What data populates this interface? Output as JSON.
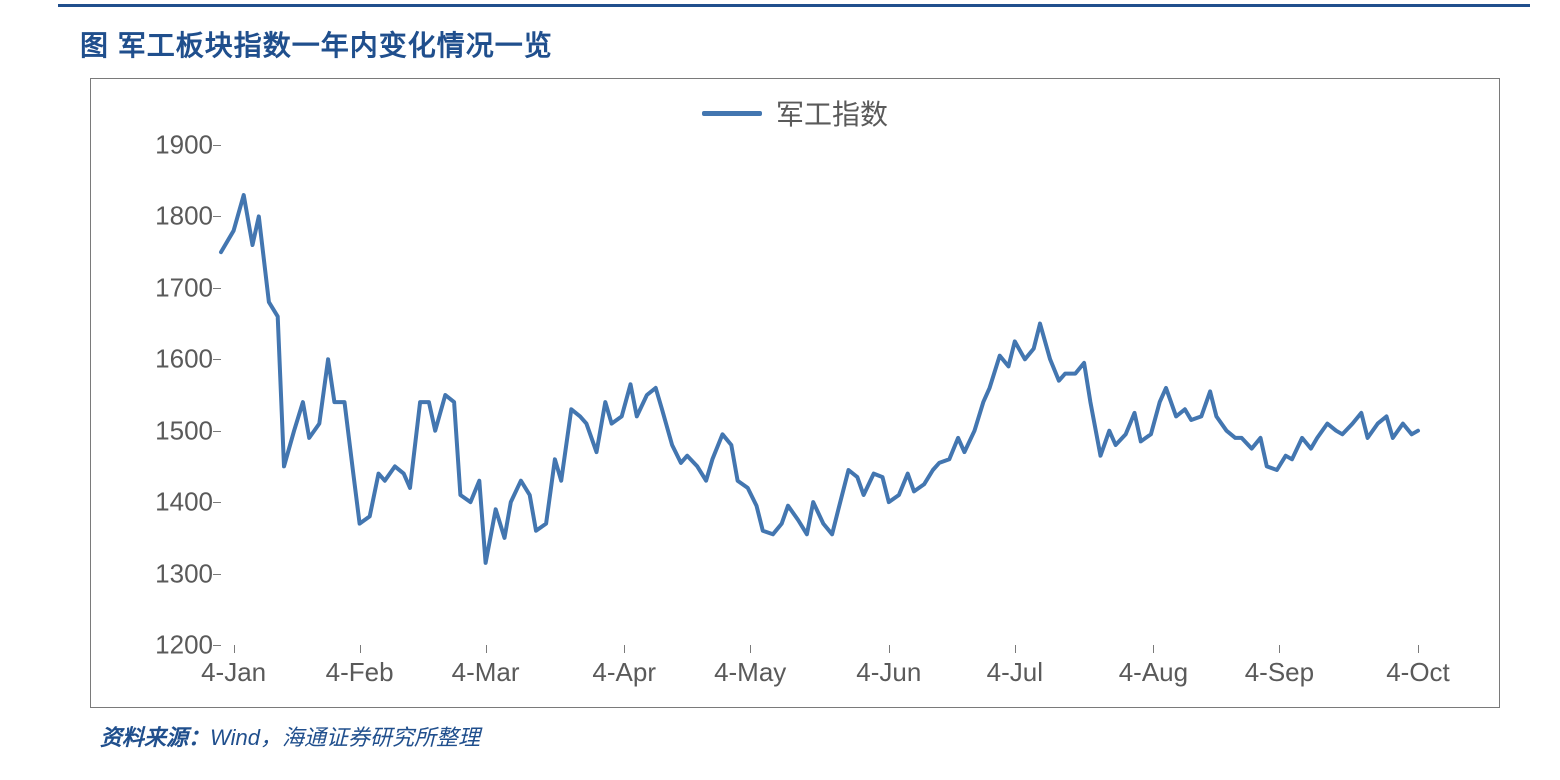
{
  "title": "图 军工板块指数一年内变化情况一览",
  "source_label": "资料来源：",
  "source_text": "Wind，海通证券研究所整理",
  "colors": {
    "accent_dark": "#204f8d",
    "line": "#4376b0",
    "axis": "#7a7a7a",
    "tick_text": "#5a5a5a",
    "background": "#ffffff"
  },
  "chart": {
    "type": "line",
    "legend_label": "军工指数",
    "legend_line_color": "#4376b0",
    "y_axis": {
      "min": 1200,
      "max": 1900,
      "ticks": [
        1200,
        1300,
        1400,
        1500,
        1600,
        1700,
        1800,
        1900
      ],
      "fontsize": 26
    },
    "x_axis": {
      "tick_labels": [
        "4-Jan",
        "4-Feb",
        "4-Mar",
        "4-Apr",
        "4-May",
        "4-Jun",
        "4-Jul",
        "4-Aug",
        "4-Sep",
        "4-Oct"
      ],
      "tick_positions_pct": [
        1,
        11,
        21,
        32,
        42,
        53,
        63,
        74,
        84,
        95
      ],
      "fontsize": 26
    },
    "line_width": 4,
    "line_color": "#4376b0",
    "series": [
      [
        0.0,
        1750
      ],
      [
        0.01,
        1780
      ],
      [
        0.018,
        1830
      ],
      [
        0.025,
        1760
      ],
      [
        0.03,
        1800
      ],
      [
        0.038,
        1680
      ],
      [
        0.045,
        1660
      ],
      [
        0.05,
        1450
      ],
      [
        0.058,
        1500
      ],
      [
        0.065,
        1540
      ],
      [
        0.07,
        1490
      ],
      [
        0.078,
        1510
      ],
      [
        0.085,
        1600
      ],
      [
        0.09,
        1540
      ],
      [
        0.098,
        1540
      ],
      [
        0.105,
        1440
      ],
      [
        0.11,
        1370
      ],
      [
        0.118,
        1380
      ],
      [
        0.125,
        1440
      ],
      [
        0.13,
        1430
      ],
      [
        0.138,
        1450
      ],
      [
        0.145,
        1440
      ],
      [
        0.15,
        1420
      ],
      [
        0.158,
        1540
      ],
      [
        0.165,
        1540
      ],
      [
        0.17,
        1500
      ],
      [
        0.178,
        1550
      ],
      [
        0.185,
        1540
      ],
      [
        0.19,
        1410
      ],
      [
        0.198,
        1400
      ],
      [
        0.205,
        1430
      ],
      [
        0.21,
        1315
      ],
      [
        0.218,
        1390
      ],
      [
        0.225,
        1350
      ],
      [
        0.23,
        1400
      ],
      [
        0.238,
        1430
      ],
      [
        0.245,
        1410
      ],
      [
        0.25,
        1360
      ],
      [
        0.258,
        1370
      ],
      [
        0.265,
        1460
      ],
      [
        0.27,
        1430
      ],
      [
        0.278,
        1530
      ],
      [
        0.285,
        1520
      ],
      [
        0.29,
        1510
      ],
      [
        0.298,
        1470
      ],
      [
        0.305,
        1540
      ],
      [
        0.31,
        1510
      ],
      [
        0.318,
        1520
      ],
      [
        0.325,
        1565
      ],
      [
        0.33,
        1520
      ],
      [
        0.338,
        1550
      ],
      [
        0.345,
        1560
      ],
      [
        0.35,
        1530
      ],
      [
        0.358,
        1480
      ],
      [
        0.365,
        1455
      ],
      [
        0.37,
        1465
      ],
      [
        0.378,
        1450
      ],
      [
        0.385,
        1430
      ],
      [
        0.39,
        1460
      ],
      [
        0.398,
        1495
      ],
      [
        0.405,
        1480
      ],
      [
        0.41,
        1430
      ],
      [
        0.418,
        1420
      ],
      [
        0.425,
        1395
      ],
      [
        0.43,
        1360
      ],
      [
        0.438,
        1355
      ],
      [
        0.445,
        1370
      ],
      [
        0.45,
        1395
      ],
      [
        0.458,
        1375
      ],
      [
        0.465,
        1355
      ],
      [
        0.47,
        1400
      ],
      [
        0.478,
        1370
      ],
      [
        0.485,
        1355
      ],
      [
        0.49,
        1390
      ],
      [
        0.498,
        1445
      ],
      [
        0.505,
        1435
      ],
      [
        0.51,
        1410
      ],
      [
        0.518,
        1440
      ],
      [
        0.525,
        1435
      ],
      [
        0.53,
        1400
      ],
      [
        0.538,
        1410
      ],
      [
        0.545,
        1440
      ],
      [
        0.55,
        1415
      ],
      [
        0.558,
        1425
      ],
      [
        0.565,
        1445
      ],
      [
        0.57,
        1455
      ],
      [
        0.578,
        1460
      ],
      [
        0.585,
        1490
      ],
      [
        0.59,
        1470
      ],
      [
        0.598,
        1500
      ],
      [
        0.605,
        1540
      ],
      [
        0.61,
        1560
      ],
      [
        0.618,
        1605
      ],
      [
        0.625,
        1590
      ],
      [
        0.63,
        1625
      ],
      [
        0.638,
        1600
      ],
      [
        0.645,
        1615
      ],
      [
        0.65,
        1650
      ],
      [
        0.658,
        1600
      ],
      [
        0.665,
        1570
      ],
      [
        0.67,
        1580
      ],
      [
        0.678,
        1580
      ],
      [
        0.685,
        1595
      ],
      [
        0.69,
        1540
      ],
      [
        0.698,
        1465
      ],
      [
        0.705,
        1500
      ],
      [
        0.71,
        1480
      ],
      [
        0.718,
        1495
      ],
      [
        0.725,
        1525
      ],
      [
        0.73,
        1485
      ],
      [
        0.738,
        1495
      ],
      [
        0.745,
        1540
      ],
      [
        0.75,
        1560
      ],
      [
        0.758,
        1520
      ],
      [
        0.765,
        1530
      ],
      [
        0.77,
        1515
      ],
      [
        0.778,
        1520
      ],
      [
        0.785,
        1555
      ],
      [
        0.79,
        1520
      ],
      [
        0.798,
        1500
      ],
      [
        0.805,
        1490
      ],
      [
        0.81,
        1490
      ],
      [
        0.818,
        1475
      ],
      [
        0.825,
        1490
      ],
      [
        0.83,
        1450
      ],
      [
        0.838,
        1445
      ],
      [
        0.845,
        1465
      ],
      [
        0.85,
        1460
      ],
      [
        0.858,
        1490
      ],
      [
        0.865,
        1475
      ],
      [
        0.87,
        1490
      ],
      [
        0.878,
        1510
      ],
      [
        0.885,
        1500
      ],
      [
        0.89,
        1495
      ],
      [
        0.898,
        1510
      ],
      [
        0.905,
        1525
      ],
      [
        0.91,
        1490
      ],
      [
        0.918,
        1510
      ],
      [
        0.925,
        1520
      ],
      [
        0.93,
        1490
      ],
      [
        0.938,
        1510
      ],
      [
        0.945,
        1495
      ],
      [
        0.95,
        1500
      ]
    ]
  }
}
